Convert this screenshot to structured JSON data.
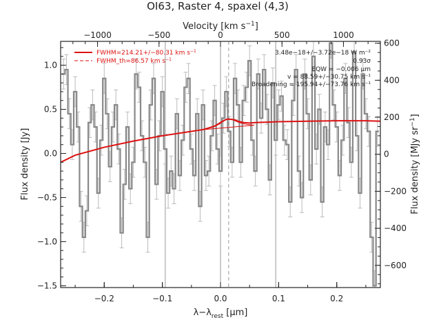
{
  "chart_data": {
    "type": "line",
    "title": "OI63, Raster 4, spaxel (4,3)",
    "xlabel": "λ−λ",
    "xlabel_sub": "rest",
    "xlabel_unit": " [μm]",
    "ylabel": "Flux density [Jy]",
    "x2label": "Velocity [km s",
    "x2label_sup": "−1",
    "x2label_end": "]",
    "y2label": "Flux density [MJy sr",
    "y2label_sup": "−1",
    "y2label_end": "]",
    "xlim": [
      -0.275,
      0.275
    ],
    "ylim": [
      -1.52,
      1.27
    ],
    "x2lim": [
      -1300,
      1300
    ],
    "y2lim": [
      -720,
      610
    ],
    "xticks": [
      -0.2,
      -0.1,
      0.0,
      0.1,
      0.2
    ],
    "xticklabels": [
      "−0.2",
      "−0.1",
      "0.0",
      "0.1",
      "0.2"
    ],
    "yticks": [
      -1.5,
      -1.0,
      -0.5,
      0.0,
      0.5,
      1.0
    ],
    "yticklabels": [
      "−1.5",
      "−1.0",
      "−0.5",
      "0.0",
      "0.5",
      "1.0"
    ],
    "x2ticks": [
      -1000,
      -500,
      0,
      500,
      1000
    ],
    "x2ticklabels": [
      "−1000",
      "−500",
      "0",
      "500",
      "1000"
    ],
    "y2ticks": [
      -600,
      -400,
      -200,
      0,
      200,
      400,
      600
    ],
    "y2ticklabels": [
      "−600",
      "−400",
      "−200",
      "0",
      "200",
      "400",
      "600"
    ],
    "vlines_solid": [
      -0.095,
      0.0,
      0.095
    ],
    "vline_dashed": 0.014,
    "legend": [
      {
        "label": "FWHM=214.21+/−80.31 km s",
        "sup": "−1",
        "style": "solid"
      },
      {
        "label": "FWHM_th=86.57 km s",
        "sup": "−1",
        "style": "dashed"
      }
    ],
    "annotations": [
      "3.48e−18+/−3.72e−18 W m⁻²",
      "0.93σ",
      "EQW = −0.006 μm",
      "v = 88.59+/−30.75 km s⁻¹",
      "Broadening = 195.94+/−73.76 km s⁻¹"
    ],
    "series": [
      {
        "role": "spectrum",
        "color": "#888888",
        "x": [
          -0.27,
          -0.265,
          -0.26,
          -0.255,
          -0.25,
          -0.245,
          -0.24,
          -0.235,
          -0.23,
          -0.225,
          -0.22,
          -0.215,
          -0.21,
          -0.205,
          -0.2,
          -0.195,
          -0.19,
          -0.185,
          -0.18,
          -0.175,
          -0.17,
          -0.165,
          -0.16,
          -0.155,
          -0.15,
          -0.145,
          -0.14,
          -0.135,
          -0.13,
          -0.125,
          -0.12,
          -0.115,
          -0.11,
          -0.105,
          -0.1,
          -0.095,
          -0.09,
          -0.085,
          -0.08,
          -0.075,
          -0.07,
          -0.065,
          -0.06,
          -0.055,
          -0.05,
          -0.045,
          -0.04,
          -0.035,
          -0.03,
          -0.025,
          -0.02,
          -0.015,
          -0.01,
          -0.005,
          0.0,
          0.005,
          0.01,
          0.015,
          0.02,
          0.025,
          0.03,
          0.035,
          0.04,
          0.045,
          0.05,
          0.055,
          0.06,
          0.065,
          0.07,
          0.075,
          0.08,
          0.085,
          0.09,
          0.095,
          0.1,
          0.105,
          0.11,
          0.115,
          0.12,
          0.125,
          0.13,
          0.135,
          0.14,
          0.145,
          0.15,
          0.155,
          0.16,
          0.165,
          0.17,
          0.175,
          0.18,
          0.185,
          0.19,
          0.195,
          0.2,
          0.205,
          0.21,
          0.215,
          0.22,
          0.225,
          0.23,
          0.235,
          0.24,
          0.245,
          0.25,
          0.255,
          0.26,
          0.265,
          0.27
        ],
        "y": [
          0.9,
          0.95,
          0.45,
          0.1,
          0.7,
          0.3,
          -0.6,
          -0.95,
          -0.65,
          0.35,
          0.55,
          0.3,
          -0.45,
          0.15,
          0.85,
          0.45,
          -0.15,
          0.3,
          0.55,
          0.05,
          -0.9,
          -0.35,
          0.3,
          -0.4,
          -0.1,
          0.9,
          0.75,
          0.2,
          -0.1,
          -0.95,
          0.55,
          0.85,
          -0.35,
          0.2,
          0.7,
          0.05,
          -0.45,
          -0.2,
          -0.4,
          0.45,
          -0.25,
          0.15,
          0.75,
          0.85,
          0.05,
          -0.25,
          0.45,
          -0.6,
          0.55,
          -0.25,
          -0.2,
          0.2,
          0.6,
          0.05,
          -0.2,
          0.4,
          0.7,
          0.25,
          -0.1,
          0.85,
          0.55,
          -0.1,
          0.6,
          0.75,
          1.05,
          0.15,
          -0.2,
          0.9,
          0.4,
          0.95,
          0.5,
          -0.3,
          0.8,
          0.15,
          0.55,
          0.65,
          0.15,
          0.1,
          -0.55,
          0.6,
          0.95,
          -0.2,
          -0.5,
          0.9,
          0.45,
          -0.3,
          1.1,
          0.05,
          0.5,
          -0.55,
          0.3,
          0.1,
          1.25,
          0.55,
          0.3,
          -0.25,
          0.15,
          0.85,
          0.35,
          -0.1,
          1.15,
          0.2,
          -0.45,
          0.9,
          0.45,
          0.25,
          -0.95,
          -1.5,
          0.25
        ],
        "err": 0.17
      },
      {
        "role": "fit",
        "color": "#dd1111",
        "x": [
          -0.275,
          -0.25,
          -0.2,
          -0.15,
          -0.1,
          -0.05,
          -0.03,
          -0.02,
          -0.01,
          0.0,
          0.005,
          0.01,
          0.014,
          0.02,
          0.025,
          0.03,
          0.04,
          0.05,
          0.06,
          0.1,
          0.15,
          0.2,
          0.25,
          0.275
        ],
        "y": [
          -0.1,
          -0.02,
          0.07,
          0.14,
          0.2,
          0.25,
          0.27,
          0.29,
          0.31,
          0.35,
          0.37,
          0.385,
          0.39,
          0.385,
          0.38,
          0.365,
          0.35,
          0.345,
          0.35,
          0.36,
          0.365,
          0.37,
          0.37,
          0.365
        ]
      },
      {
        "role": "gaussian",
        "color": "#dd1111",
        "x": [
          -0.03,
          -0.02,
          -0.01,
          0.0,
          0.005,
          0.01,
          0.014,
          0.02,
          0.025,
          0.03,
          0.04,
          0.05,
          0.058
        ],
        "y": [
          0.27,
          0.285,
          0.305,
          0.34,
          0.365,
          0.385,
          0.39,
          0.385,
          0.37,
          0.355,
          0.335,
          0.325,
          0.32
        ]
      },
      {
        "role": "baseline",
        "color": "#dd1111",
        "x": [
          -0.03,
          0.058
        ],
        "y": [
          0.27,
          0.32
        ]
      }
    ]
  }
}
